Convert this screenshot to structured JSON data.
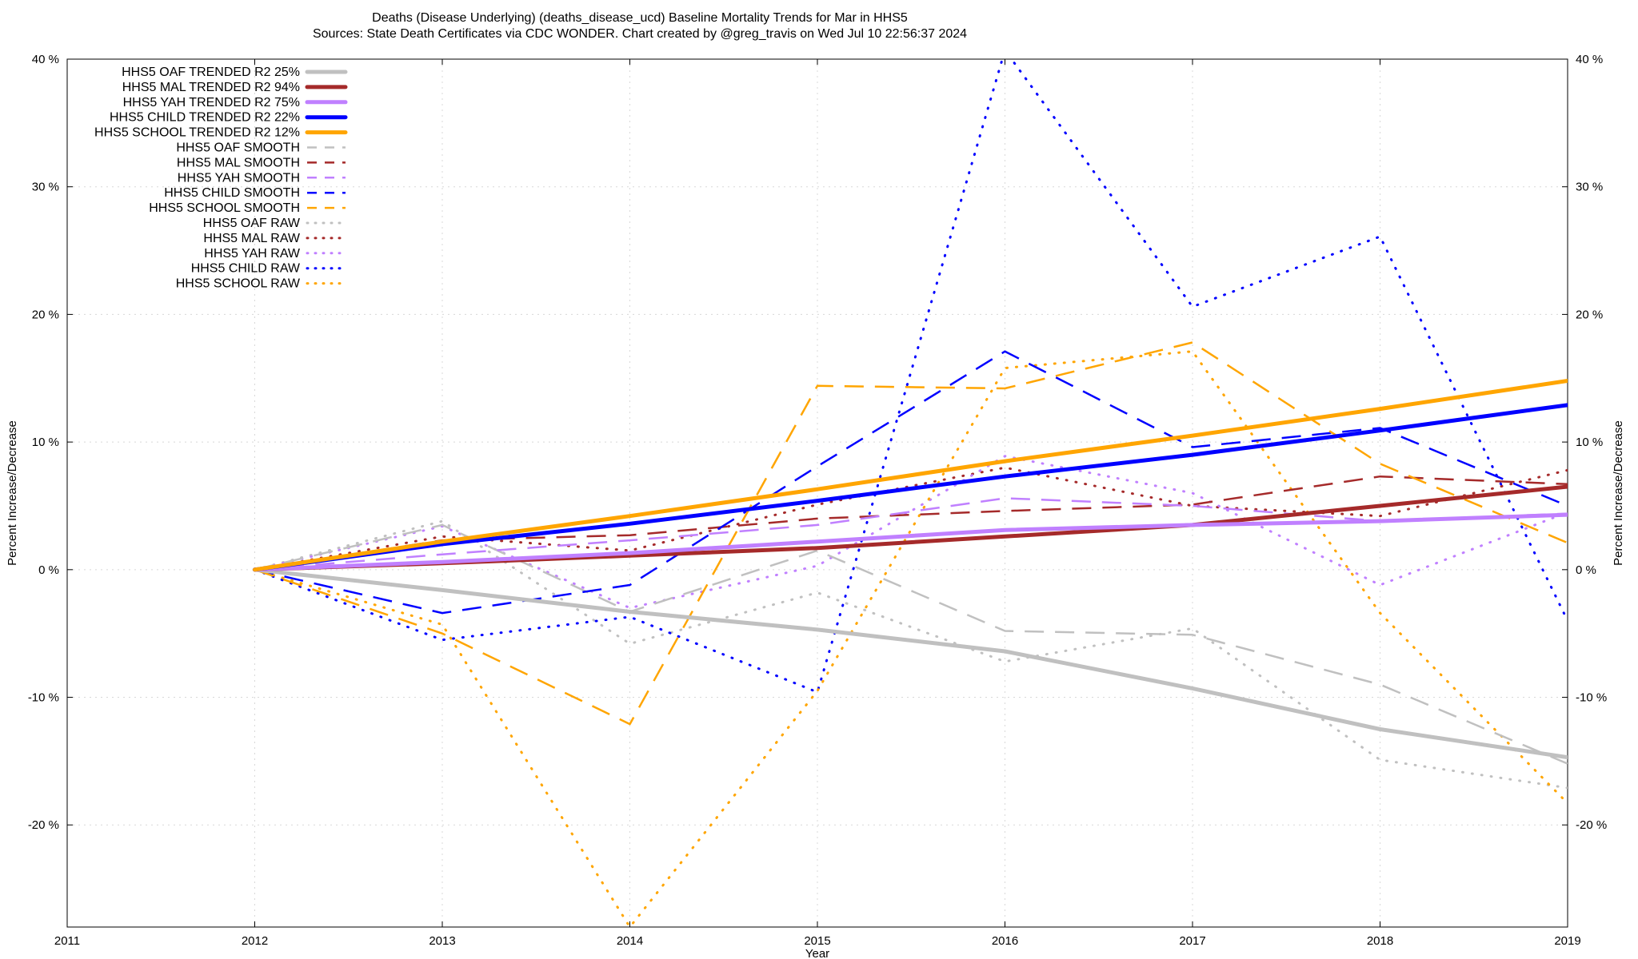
{
  "chart_data": {
    "type": "line",
    "title": "Deaths (Disease Underlying) (deaths_disease_ucd)  Baseline Mortality Trends for Mar in HHS5",
    "subtitle": "Sources: State Death Certificates via CDC WONDER.                Chart created by @greg_travis on Wed Jul 10 22:56:37 2024",
    "xlabel": "Year",
    "ylabel": "Percent Increase/Decrease",
    "y2label": "Percent Increase/Decrease",
    "xlim": [
      2011,
      2019
    ],
    "ylim": [
      -28,
      40
    ],
    "x_ticks": [
      "2011",
      "2012",
      "2013",
      "2014",
      "2015",
      "2016",
      "2017",
      "2018",
      "2019"
    ],
    "y_ticks": [
      {
        "value": 40,
        "label": "40 %"
      },
      {
        "value": 30,
        "label": "30 %"
      },
      {
        "value": 20,
        "label": "20 %"
      },
      {
        "value": 10,
        "label": "10 %"
      },
      {
        "value": 0,
        "label": "0 %"
      },
      {
        "value": -10,
        "label": "-10 %"
      },
      {
        "value": -20,
        "label": "-20 %"
      }
    ],
    "grid": true,
    "legend_position": "top-left",
    "series": [
      {
        "name": "HHS5 OAF TRENDED R2  25%",
        "style": "solid",
        "color": "#c0c0c0",
        "x": [
          2012,
          2013,
          2014,
          2015,
          2016,
          2017,
          2018,
          2019
        ],
        "y": [
          0,
          -1.6,
          -3.3,
          -4.7,
          -6.4,
          -9.3,
          -12.5,
          -14.7
        ]
      },
      {
        "name": "HHS5 MAL TRENDED R2  94%",
        "style": "solid",
        "color": "#a52a2a",
        "x": [
          2012,
          2013,
          2014,
          2015,
          2016,
          2017,
          2018,
          2019
        ],
        "y": [
          0,
          0.5,
          1.1,
          1.7,
          2.6,
          3.5,
          5.0,
          6.5
        ]
      },
      {
        "name": "HHS5 YAH TRENDED R2  75%",
        "style": "solid",
        "color": "#c080ff",
        "x": [
          2012,
          2013,
          2014,
          2015,
          2016,
          2017,
          2018,
          2019
        ],
        "y": [
          0,
          0.6,
          1.3,
          2.2,
          3.1,
          3.5,
          3.8,
          4.3
        ]
      },
      {
        "name": "HHS5 CHILD TRENDED R2  22%",
        "style": "solid",
        "color": "#0000ff",
        "x": [
          2012,
          2013,
          2014,
          2015,
          2016,
          2017,
          2018,
          2019
        ],
        "y": [
          0,
          2.0,
          3.6,
          5.4,
          7.3,
          9.0,
          10.9,
          12.9
        ]
      },
      {
        "name": "HHS5 SCHOOL TRENDED R2  12%",
        "style": "solid",
        "color": "#ffa500",
        "x": [
          2012,
          2013,
          2014,
          2015,
          2016,
          2017,
          2018,
          2019
        ],
        "y": [
          0,
          2.2,
          4.2,
          6.3,
          8.5,
          10.5,
          12.6,
          14.8
        ]
      },
      {
        "name": "HHS5 OAF SMOOTH",
        "style": "dashed",
        "color": "#c0c0c0",
        "x": [
          2012,
          2013,
          2014,
          2015,
          2016,
          2017,
          2018,
          2019
        ],
        "y": [
          0,
          3.5,
          -3.3,
          1.5,
          -4.8,
          -5.1,
          -9.0,
          -15.2
        ]
      },
      {
        "name": "HHS5 MAL SMOOTH",
        "style": "dashed",
        "color": "#a52a2a",
        "x": [
          2012,
          2013,
          2014,
          2015,
          2016,
          2017,
          2018,
          2019
        ],
        "y": [
          0,
          2.3,
          2.7,
          4.0,
          4.6,
          5.1,
          7.3,
          6.7
        ]
      },
      {
        "name": "HHS5 YAH SMOOTH",
        "style": "dashed",
        "color": "#c080ff",
        "x": [
          2012,
          2013,
          2014,
          2015,
          2016,
          2017,
          2018,
          2019
        ],
        "y": [
          0,
          1.2,
          2.3,
          3.5,
          5.6,
          5.0,
          3.8,
          4.4
        ]
      },
      {
        "name": "HHS5 CHILD SMOOTH",
        "style": "dashed",
        "color": "#0000ff",
        "x": [
          2012,
          2013,
          2014,
          2015,
          2016,
          2017,
          2018,
          2019
        ],
        "y": [
          0,
          -3.4,
          -1.2,
          8.1,
          17.1,
          9.6,
          11.1,
          5.0
        ]
      },
      {
        "name": "HHS5 SCHOOL SMOOTH",
        "style": "dashed",
        "color": "#ffa500",
        "x": [
          2012,
          2013,
          2014,
          2015,
          2016,
          2017,
          2018,
          2019
        ],
        "y": [
          0,
          -5.0,
          -12.1,
          14.4,
          14.2,
          17.8,
          8.3,
          2.1
        ]
      },
      {
        "name": "HHS5 OAF RAW",
        "style": "dotted",
        "color": "#c0c0c0",
        "x": [
          2012,
          2013,
          2014,
          2015,
          2016,
          2017,
          2018,
          2019
        ],
        "y": [
          0,
          3.8,
          -5.8,
          -1.8,
          -7.2,
          -4.6,
          -14.9,
          -17.1
        ]
      },
      {
        "name": "HHS5 MAL RAW",
        "style": "dotted",
        "color": "#a52a2a",
        "x": [
          2012,
          2013,
          2014,
          2015,
          2016,
          2017,
          2018,
          2019
        ],
        "y": [
          0,
          2.6,
          1.5,
          5.1,
          8.0,
          5.0,
          4.2,
          7.8
        ]
      },
      {
        "name": "HHS5 YAH RAW",
        "style": "dotted",
        "color": "#c080ff",
        "x": [
          2012,
          2013,
          2014,
          2015,
          2016,
          2017,
          2018,
          2019
        ],
        "y": [
          0,
          3.4,
          -3.0,
          0.3,
          8.9,
          6.0,
          -1.2,
          4.5
        ]
      },
      {
        "name": "HHS5 CHILD RAW",
        "style": "dotted",
        "color": "#0000ff",
        "x": [
          2012,
          2013,
          2014,
          2015,
          2016,
          2017,
          2018,
          2019
        ],
        "y": [
          0,
          -5.5,
          -3.7,
          -9.6,
          40.7,
          20.6,
          26.1,
          -4.0
        ]
      },
      {
        "name": "HHS5 SCHOOL RAW",
        "style": "dotted",
        "color": "#ffa500",
        "x": [
          2012,
          2013,
          2014,
          2015,
          2016,
          2017,
          2018,
          2019
        ],
        "y": [
          0,
          -4.3,
          -28.0,
          -9.5,
          15.8,
          17.1,
          -3.4,
          -18.3
        ]
      }
    ]
  }
}
